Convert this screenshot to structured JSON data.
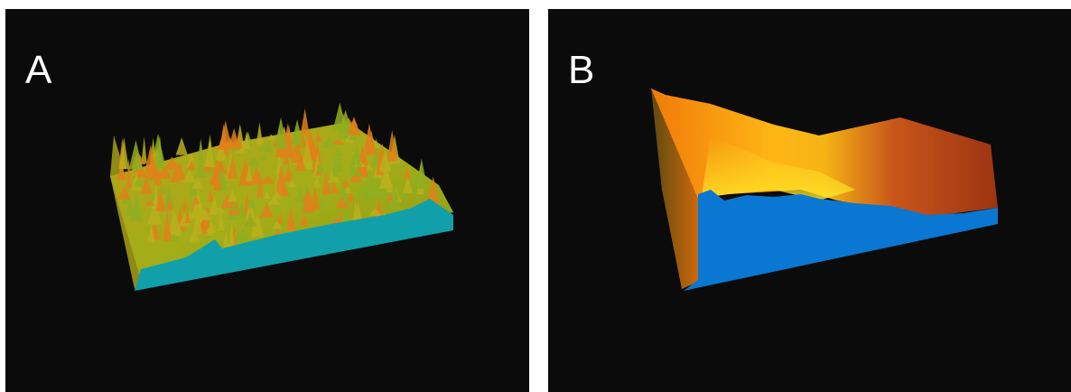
{
  "panels": [
    {
      "label": "A",
      "description_colors": {
        "surface_base": "#9aa61a",
        "surface_peak": "#e07a10",
        "side_wall": "#0fa0a8",
        "left_wall": "#8a8a12"
      }
    },
    {
      "label": "B",
      "description_colors": {
        "surface_warm": "#f29a0c",
        "surface_bright": "#ffd21a",
        "surface_dark": "#a83a0c",
        "side_wall": "#0a78d2",
        "left_wall": "#6a5a10"
      }
    }
  ]
}
